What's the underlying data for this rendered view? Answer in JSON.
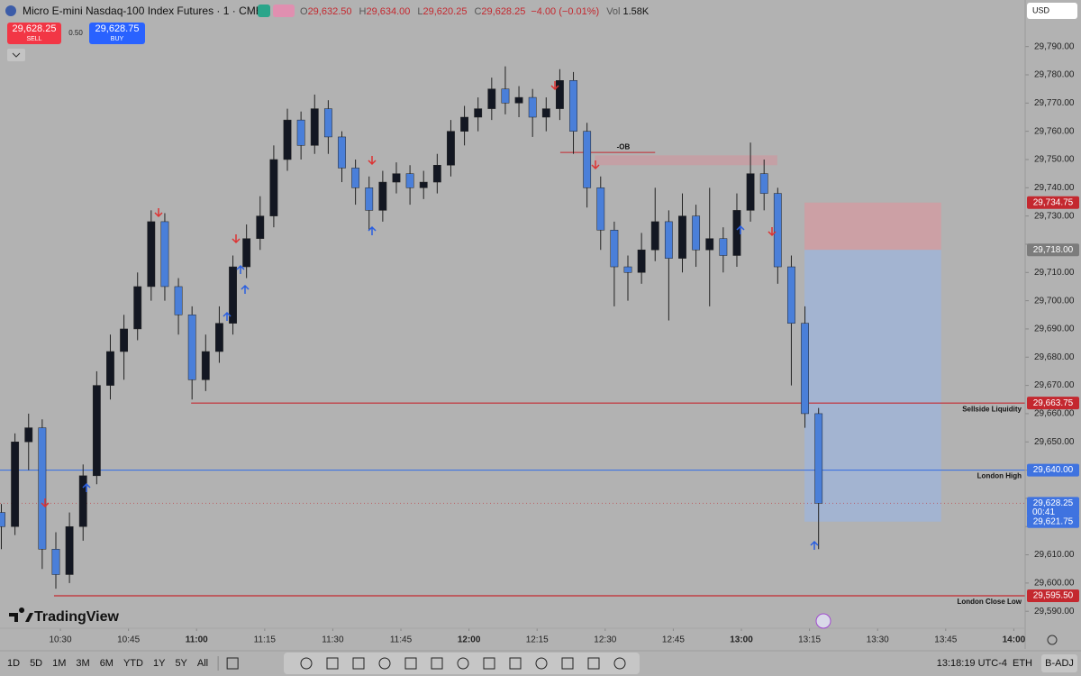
{
  "header": {
    "title": "Micro E-mini Nasdaq-100 Index Futures · 1 · CME",
    "ohlc": [
      {
        "key": "O",
        "value": "29,632.50"
      },
      {
        "key": "H",
        "value": "29,634.00"
      },
      {
        "key": "L",
        "value": "29,620.25"
      },
      {
        "key": "C",
        "value": "29,628.25"
      }
    ],
    "change": "−4.00 (−0.01%)",
    "volume": {
      "key": "Vol",
      "value": "1.58K"
    },
    "sell": {
      "price": "29,628.25",
      "label": "SELL"
    },
    "spread": "0.50",
    "buy": {
      "price": "29,628.75",
      "label": "BUY"
    },
    "currency": "USD"
  },
  "chart_data": {
    "type": "candlestick",
    "up_color": "#131722",
    "down_color": "#4a7fd9",
    "xlim": [
      616.7,
      842.5
    ],
    "ylim": [
      29584,
      29806.5
    ],
    "xticks": [
      {
        "value": 630,
        "label": "10:30"
      },
      {
        "value": 645,
        "label": "10:45"
      },
      {
        "value": 660,
        "label": "11:00"
      },
      {
        "value": 675,
        "label": "11:15"
      },
      {
        "value": 690,
        "label": "11:30"
      },
      {
        "value": 705,
        "label": "11:45"
      },
      {
        "value": 720,
        "label": "12:00"
      },
      {
        "value": 735,
        "label": "12:15"
      },
      {
        "value": 750,
        "label": "12:30"
      },
      {
        "value": 765,
        "label": "12:45"
      },
      {
        "value": 780,
        "label": "13:00"
      },
      {
        "value": 795,
        "label": "13:15"
      },
      {
        "value": 810,
        "label": "13:30"
      },
      {
        "value": 825,
        "label": "13:45"
      },
      {
        "value": 840,
        "label": "14:00"
      }
    ],
    "yticks": [
      {
        "value": 29590,
        "label": "29,590.00"
      },
      {
        "value": 29600,
        "label": "29,600.00"
      },
      {
        "value": 29610,
        "label": "29,610.00"
      },
      {
        "value": 29620,
        "label": "29,620.00"
      },
      {
        "value": 29630,
        "label": "29,630.00"
      },
      {
        "value": 29640,
        "label": "29,640.00"
      },
      {
        "value": 29650,
        "label": "29,650.00"
      },
      {
        "value": 29660,
        "label": "29,660.00"
      },
      {
        "value": 29670,
        "label": "29,670.00"
      },
      {
        "value": 29680,
        "label": "29,680.00"
      },
      {
        "value": 29690,
        "label": "29,690.00"
      },
      {
        "value": 29700,
        "label": "29,700.00"
      },
      {
        "value": 29710,
        "label": "29,710.00"
      },
      {
        "value": 29720,
        "label": "29,720.00"
      },
      {
        "value": 29730,
        "label": "29,730.00"
      },
      {
        "value": 29740,
        "label": "29,740.00"
      },
      {
        "value": 29750,
        "label": "29,750.00"
      },
      {
        "value": 29760,
        "label": "29,760.00"
      },
      {
        "value": 29770,
        "label": "29,770.00"
      },
      {
        "value": 29780,
        "label": "29,780.00"
      },
      {
        "value": 29790,
        "label": "29,790.00"
      }
    ],
    "x": [
      617,
      620,
      623,
      626,
      629,
      632,
      635,
      638,
      641,
      644,
      647,
      650,
      653,
      656,
      659,
      662,
      665,
      668,
      671,
      674,
      677,
      680,
      683,
      686,
      689,
      692,
      695,
      698,
      701,
      704,
      707,
      710,
      713,
      716,
      719,
      722,
      725,
      728,
      731,
      734,
      737,
      740,
      743,
      746,
      749,
      752,
      755,
      758,
      761,
      764,
      767,
      770,
      773,
      776,
      779,
      782,
      785,
      788,
      791,
      794,
      797
    ],
    "open": [
      29625,
      29620,
      29650,
      29655,
      29612,
      29603,
      29620,
      29638,
      29670,
      29682,
      29690,
      29705,
      29728,
      29705,
      29695,
      29672,
      29682,
      29692,
      29712,
      29722,
      29730,
      29750,
      29764,
      29755,
      29768,
      29758,
      29747,
      29740,
      29732,
      29742,
      29745,
      29740,
      29742,
      29748,
      29760,
      29765,
      29768,
      29775,
      29770,
      29772,
      29765,
      29768,
      29778,
      29760,
      29740,
      29725,
      29712,
      29710,
      29718,
      29728,
      29715,
      29730,
      29718,
      29722,
      29716,
      29732,
      29745,
      29738,
      29712,
      29692,
      29660
    ],
    "high": [
      29628,
      29653,
      29660,
      29658,
      29618,
      29625,
      29642,
      29675,
      29688,
      29695,
      29710,
      29732,
      29731,
      29708,
      29698,
      29688,
      29698,
      29716,
      29727,
      29737,
      29755,
      29768,
      29767,
      29773,
      29771,
      29760,
      29750,
      29744,
      29746,
      29749,
      29748,
      29746,
      29752,
      29764,
      29769,
      29772,
      29779,
      29783,
      29776,
      29775,
      29772,
      29782,
      29781,
      29763,
      29744,
      29728,
      29716,
      29724,
      29740,
      29732,
      29738,
      29734,
      29740,
      29726,
      29738,
      29756,
      29750,
      29740,
      29716,
      29698,
      29662
    ],
    "low": [
      29612,
      29617,
      29640,
      29605,
      29598,
      29600,
      29615,
      29635,
      29665,
      29672,
      29686,
      29700,
      29700,
      29688,
      29665,
      29668,
      29678,
      29688,
      29708,
      29718,
      29726,
      29746,
      29750,
      29752,
      29752,
      29742,
      29734,
      29725,
      29728,
      29738,
      29734,
      29736,
      29738,
      29744,
      29755,
      29760,
      29764,
      29766,
      29765,
      29758,
      29760,
      29764,
      29752,
      29733,
      29718,
      29698,
      29700,
      29706,
      29714,
      29693,
      29710,
      29712,
      29698,
      29710,
      29712,
      29728,
      29732,
      29706,
      29670,
      29655,
      29612
    ],
    "close": [
      29620,
      29650,
      29655,
      29612,
      29603,
      29620,
      29638,
      29670,
      29682,
      29690,
      29705,
      29728,
      29705,
      29695,
      29672,
      29682,
      29692,
      29712,
      29722,
      29730,
      29750,
      29764,
      29755,
      29768,
      29758,
      29747,
      29740,
      29732,
      29742,
      29745,
      29740,
      29742,
      29748,
      29760,
      29765,
      29768,
      29775,
      29770,
      29772,
      29765,
      29768,
      29778,
      29760,
      29740,
      29725,
      29712,
      29710,
      29718,
      29728,
      29715,
      29730,
      29718,
      29722,
      29716,
      29732,
      29745,
      29738,
      29712,
      29692,
      29660,
      29628.25
    ],
    "levels": [
      {
        "name": "Sellside Liquidity",
        "value": 29663.75,
        "label": "29,663.75",
        "color": "#c4282f",
        "start": 658.8
      },
      {
        "name": "London High",
        "value": 29640,
        "label": "29,640.00",
        "color": "#3f73e0"
      },
      {
        "name": "London Close Low",
        "value": 29595.5,
        "label": "29,595.50",
        "color": "#c4282f",
        "start": 628.6
      }
    ],
    "order_block": {
      "label": "-OB",
      "low": 29748,
      "high": 29751.5,
      "time": [
        747.7,
        787.9
      ],
      "line_value": 29752.5,
      "line_time": [
        740.1,
        761
      ]
    },
    "position": {
      "time": [
        793.9,
        824
      ],
      "stop": {
        "value": 29734.75,
        "label": "29,734.75"
      },
      "entry": {
        "value": 29718,
        "label": "29,718.00"
      },
      "target": {
        "value": 29621.75,
        "label": "29,621.75"
      }
    },
    "last_price": {
      "value": 29628.25,
      "label": "29,628.25",
      "countdown": "00:41"
    }
  },
  "footer": {
    "timeframes": [
      "1D",
      "5D",
      "1M",
      "3M",
      "6M",
      "YTD",
      "1Y",
      "5Y",
      "All"
    ],
    "clock": "13:18:19 UTC-4",
    "session": "ETH",
    "adjust": "B-ADJ",
    "brand": "TradingView"
  }
}
